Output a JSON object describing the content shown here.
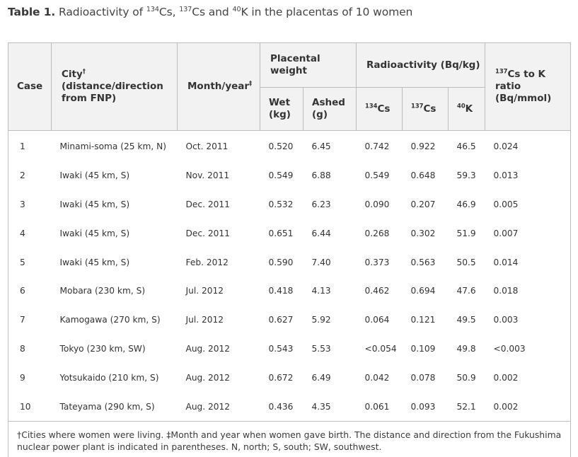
{
  "caption": {
    "label": "Table 1.",
    "text_a": " Radioactivity of ",
    "sup_134": "134",
    "cs_a": "Cs, ",
    "sup_137": "137",
    "cs_b": "Cs and ",
    "sup_40": "40",
    "k_text": "K in the placentas of 10 women"
  },
  "headers": {
    "case": "Case",
    "city": "City",
    "city_dagger": "†",
    "city_sub": "(distance/direction from FNP)",
    "month": "Month/year",
    "month_dagger": "‡",
    "placental": "Placental weight",
    "wet": "Wet (kg)",
    "ashed": "Ashed (g)",
    "radio": "Radioactivity (Bq/kg)",
    "sup_134": "134",
    "sup_137": "137",
    "sup_40": "40",
    "cs": "Cs",
    "k": "K",
    "ratio_sup": "137",
    "ratio_text": "Cs to K ratio (Bq/mmol)"
  },
  "rows": [
    {
      "case": "1",
      "city": "Minami-soma (25 km, N)",
      "month": "Oct. 2011",
      "wet": "0.520",
      "ashed": "6.45",
      "cs134": "0.742",
      "cs137": "0.922",
      "k40": "46.5",
      "ratio": "0.024"
    },
    {
      "case": "2",
      "city": "Iwaki (45 km, S)",
      "month": "Nov. 2011",
      "wet": "0.549",
      "ashed": "6.88",
      "cs134": "0.549",
      "cs137": "0.648",
      "k40": "59.3",
      "ratio": "0.013"
    },
    {
      "case": "3",
      "city": "Iwaki (45 km, S)",
      "month": "Dec. 2011",
      "wet": "0.532",
      "ashed": "6.23",
      "cs134": "0.090",
      "cs137": "0.207",
      "k40": "46.9",
      "ratio": "0.005"
    },
    {
      "case": "4",
      "city": "Iwaki (45 km, S)",
      "month": "Dec. 2011",
      "wet": "0.651",
      "ashed": "6.44",
      "cs134": "0.268",
      "cs137": "0.302",
      "k40": "51.9",
      "ratio": "0.007"
    },
    {
      "case": "5",
      "city": "Iwaki (45 km, S)",
      "month": "Feb. 2012",
      "wet": "0.590",
      "ashed": "7.40",
      "cs134": "0.373",
      "cs137": "0.563",
      "k40": "50.5",
      "ratio": "0.014"
    },
    {
      "case": "6",
      "city": "Mobara (230 km, S)",
      "month": "Jul. 2012",
      "wet": "0.418",
      "ashed": "4.13",
      "cs134": "0.462",
      "cs137": "0.694",
      "k40": "47.6",
      "ratio": "0.018"
    },
    {
      "case": "7",
      "city": "Kamogawa (270 km, S)",
      "month": "Jul. 2012",
      "wet": "0.627",
      "ashed": "5.92",
      "cs134": "0.064",
      "cs137": "0.121",
      "k40": "49.5",
      "ratio": "0.003"
    },
    {
      "case": "8",
      "city": "Tokyo (230 km, SW)",
      "month": "Aug. 2012",
      "wet": "0.543",
      "ashed": "5.53",
      "cs134": "<0.054",
      "cs137": "0.109",
      "k40": "49.8",
      "ratio": "<0.003"
    },
    {
      "case": "9",
      "city": "Yotsukaido (210 km, S)",
      "month": "Aug. 2012",
      "wet": "0.672",
      "ashed": "6.49",
      "cs134": "0.042",
      "cs137": "0.078",
      "k40": "50.9",
      "ratio": "0.002"
    },
    {
      "case": "10",
      "city": "Tateyama (290 km, S)",
      "month": "Aug. 2012",
      "wet": "0.436",
      "ashed": "4.35",
      "cs134": "0.061",
      "cs137": "0.093",
      "k40": "52.1",
      "ratio": "0.002"
    }
  ],
  "footnote": "†Cities where women were living. ‡Month and year when women gave birth. The distance and direction from the Fukushima nuclear power plant is indicated in parentheses. N, north; S, south; SW, southwest."
}
